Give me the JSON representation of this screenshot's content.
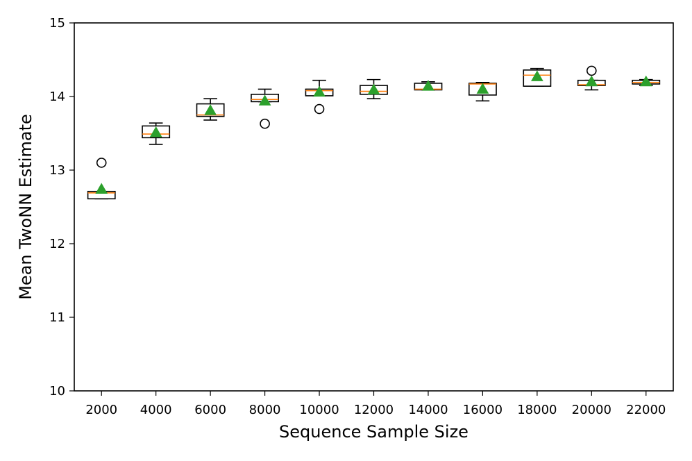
{
  "chart_data": {
    "type": "boxplot",
    "title": "",
    "xlabel": "Sequence Sample Size",
    "ylabel": "Mean TwoNN Estimate",
    "ylim": [
      10,
      15
    ],
    "yticks": [
      10,
      11,
      12,
      13,
      14,
      15
    ],
    "grid": false,
    "colors": {
      "box": "#000000",
      "median": "#ff7f0e",
      "mean_marker": "#2ca02c",
      "outlier": "#000000"
    },
    "categories": [
      "2000",
      "4000",
      "6000",
      "8000",
      "10000",
      "12000",
      "14000",
      "16000",
      "18000",
      "20000",
      "22000"
    ],
    "boxes": [
      {
        "q1": 12.61,
        "median": 12.69,
        "q3": 12.71,
        "whislo": 12.61,
        "whishi": 12.71,
        "mean": 12.74,
        "outliers": [
          13.1
        ]
      },
      {
        "q1": 13.44,
        "median": 13.49,
        "q3": 13.6,
        "whislo": 13.35,
        "whishi": 13.64,
        "mean": 13.51,
        "outliers": []
      },
      {
        "q1": 13.73,
        "median": 13.75,
        "q3": 13.9,
        "whislo": 13.68,
        "whishi": 13.97,
        "mean": 13.81,
        "outliers": []
      },
      {
        "q1": 13.93,
        "median": 13.96,
        "q3": 14.03,
        "whislo": 13.93,
        "whishi": 14.1,
        "mean": 13.94,
        "outliers": [
          13.63
        ]
      },
      {
        "q1": 14.01,
        "median": 14.08,
        "q3": 14.1,
        "whislo": 14.01,
        "whishi": 14.22,
        "mean": 14.06,
        "outliers": [
          13.83
        ]
      },
      {
        "q1": 14.03,
        "median": 14.07,
        "q3": 14.15,
        "whislo": 13.97,
        "whishi": 14.23,
        "mean": 14.09,
        "outliers": []
      },
      {
        "q1": 14.09,
        "median": 14.1,
        "q3": 14.18,
        "whislo": 14.09,
        "whishi": 14.2,
        "mean": 14.14,
        "outliers": []
      },
      {
        "q1": 14.02,
        "median": 14.17,
        "q3": 14.18,
        "whislo": 13.94,
        "whishi": 14.19,
        "mean": 14.1,
        "outliers": []
      },
      {
        "q1": 14.14,
        "median": 14.29,
        "q3": 14.36,
        "whislo": 14.14,
        "whishi": 14.38,
        "mean": 14.27,
        "outliers": []
      },
      {
        "q1": 14.15,
        "median": 14.16,
        "q3": 14.22,
        "whislo": 14.09,
        "whishi": 14.22,
        "mean": 14.2,
        "outliers": [
          14.35
        ]
      },
      {
        "q1": 14.17,
        "median": 14.19,
        "q3": 14.22,
        "whislo": 14.15,
        "whishi": 14.23,
        "mean": 14.2,
        "outliers": []
      }
    ]
  }
}
